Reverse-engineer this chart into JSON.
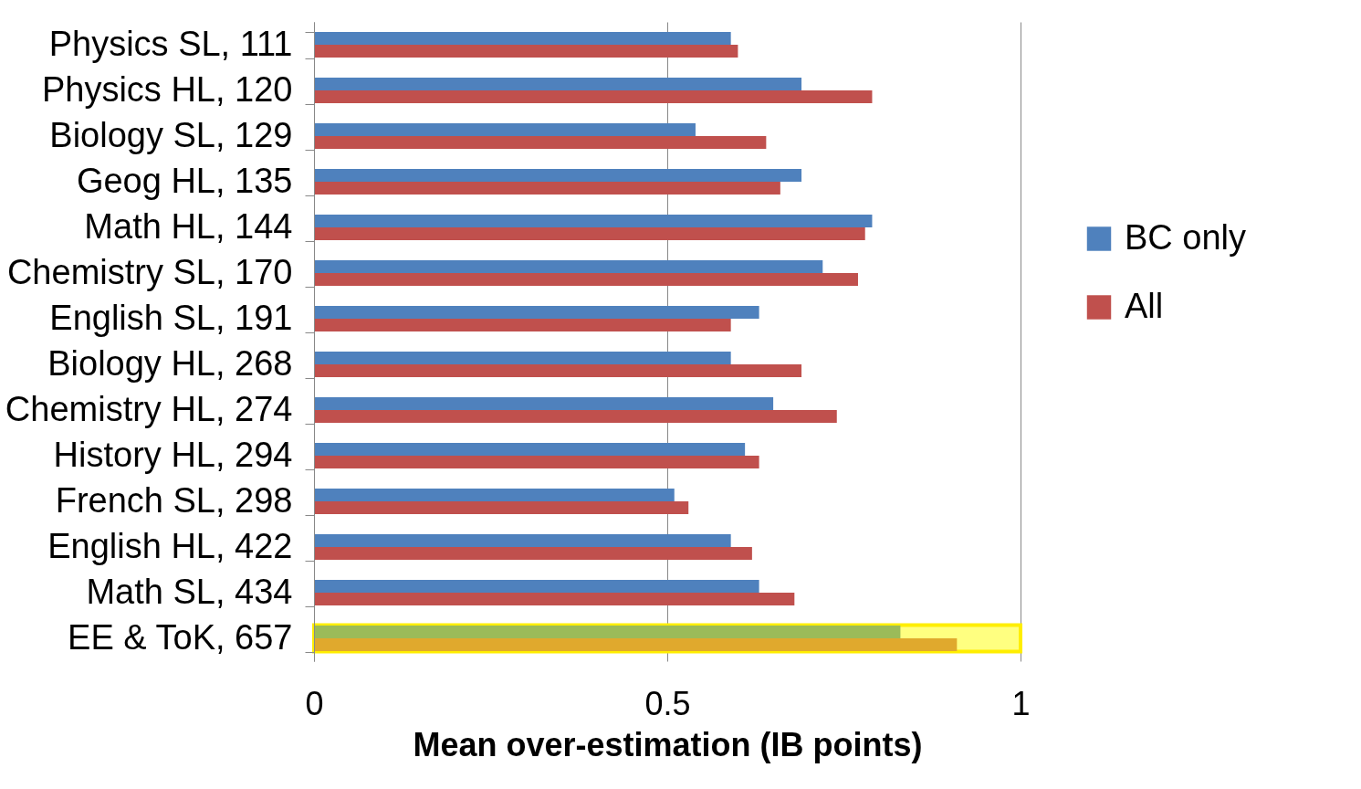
{
  "chart_data": {
    "type": "bar",
    "orientation": "horizontal",
    "xlabel": "Mean over-estimation (IB points)",
    "categories": [
      "Physics SL, 111",
      "Physics HL, 120",
      "Biology SL, 129",
      "Geog HL, 135",
      "Math HL, 144",
      "Chemistry SL, 170",
      "English SL, 191",
      "Biology HL, 268",
      "Chemistry HL, 274",
      "History HL, 294",
      "French SL, 298",
      "English HL, 422",
      "Math SL, 434",
      "EE & ToK, 657"
    ],
    "series": [
      {
        "name": "BC only",
        "color": "#4f81bd",
        "colors": [
          "#4f81bd",
          "#4f81bd",
          "#4f81bd",
          "#4f81bd",
          "#4f81bd",
          "#4f81bd",
          "#4f81bd",
          "#4f81bd",
          "#4f81bd",
          "#4f81bd",
          "#4f81bd",
          "#4f81bd",
          "#4f81bd",
          "#9bbb59"
        ],
        "values": [
          0.59,
          0.69,
          0.54,
          0.69,
          0.79,
          0.72,
          0.63,
          0.59,
          0.65,
          0.61,
          0.51,
          0.59,
          0.63,
          0.83
        ]
      },
      {
        "name": "All",
        "color": "#c0504d",
        "colors": [
          "#c0504d",
          "#c0504d",
          "#c0504d",
          "#c0504d",
          "#c0504d",
          "#c0504d",
          "#c0504d",
          "#c0504d",
          "#c0504d",
          "#c0504d",
          "#c0504d",
          "#c0504d",
          "#c0504d",
          "#e0a92d"
        ],
        "values": [
          0.6,
          0.79,
          0.64,
          0.66,
          0.78,
          0.77,
          0.59,
          0.69,
          0.74,
          0.63,
          0.53,
          0.62,
          0.68,
          0.91
        ]
      }
    ],
    "xlim": [
      0,
      1
    ],
    "xticks": [
      0,
      0.5,
      1
    ],
    "grid": "x",
    "legend": "right",
    "bands": [
      {
        "axis": "y",
        "from": "EE & ToK, 657",
        "to": "EE & ToK, 657",
        "color": "#ffff80"
      }
    ]
  }
}
